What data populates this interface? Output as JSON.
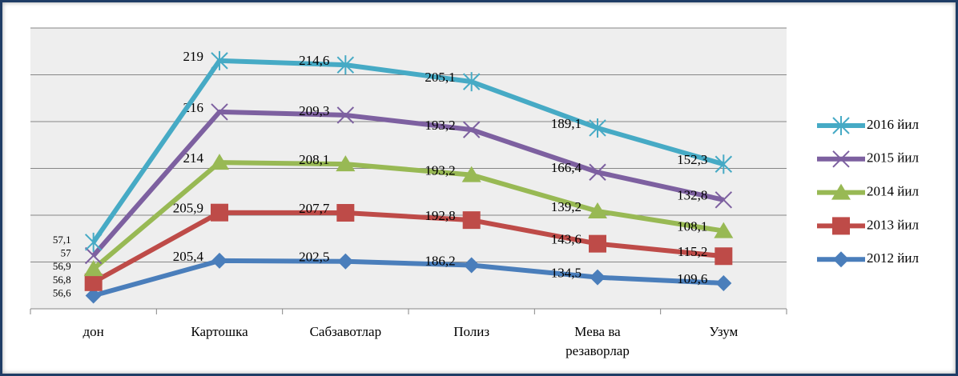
{
  "chart_data": {
    "type": "line",
    "stacked": true,
    "categories": [
      "дон",
      "Картошка",
      "Сабзавотлар",
      "Полиз",
      "Мева ва резаворлар",
      "Узум"
    ],
    "series": [
      {
        "name": "2012 йил",
        "color": "#4a7ebb",
        "marker": "diamond",
        "values": [
          56.6,
          205.4,
          202.5,
          186.2,
          134.5,
          109.6
        ],
        "value_labels": [
          "56,6",
          "205,4",
          "202,5",
          "186,2",
          "134,5",
          "109,6"
        ]
      },
      {
        "name": "2013 йил",
        "color": "#be4b48",
        "marker": "square",
        "values": [
          56.8,
          205.9,
          207.7,
          192.8,
          143.6,
          115.2
        ],
        "value_labels": [
          "56,8",
          "205,9",
          "207,7",
          "192,8",
          "143,6",
          "115,2"
        ]
      },
      {
        "name": "2014 йил",
        "color": "#98b954",
        "marker": "triangle",
        "values": [
          56.9,
          214,
          208.1,
          193.2,
          139.2,
          108.1
        ],
        "value_labels": [
          "56,9",
          "214",
          "208,1",
          "193,2",
          "139,2",
          "108,1"
        ]
      },
      {
        "name": "2015 йил",
        "color": "#7d60a0",
        "marker": "x",
        "values": [
          57,
          216,
          209.3,
          193.2,
          166.4,
          132.8
        ],
        "value_labels": [
          "57",
          "216",
          "209,3",
          "193,2",
          "166,4",
          "132,8"
        ]
      },
      {
        "name": "2016 йил",
        "color": "#46aac5",
        "marker": "star",
        "values": [
          57.1,
          219,
          214.6,
          205.1,
          189.1,
          152.3
        ],
        "value_labels": [
          "57,1",
          "219",
          "214,6",
          "205,1",
          "189,1",
          "152,3"
        ]
      }
    ],
    "ylim": [
      0,
      1200
    ],
    "yticks": [
      0,
      200,
      400,
      600,
      800,
      1000,
      1200
    ],
    "grid": true,
    "legend": "right"
  }
}
